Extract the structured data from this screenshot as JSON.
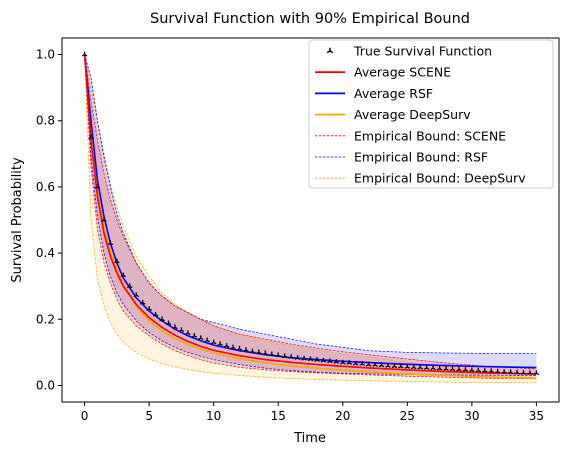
{
  "chart_data": {
    "type": "line",
    "title": "Survival Function with 90% Empirical Bound",
    "xlabel": "Time",
    "ylabel": "Survival Probability",
    "xlim": [
      -1.75,
      36.75
    ],
    "ylim": [
      -0.05,
      1.05
    ],
    "xticks": [
      0,
      5,
      10,
      15,
      20,
      25,
      30,
      35
    ],
    "yticks": [
      0.0,
      0.2,
      0.4,
      0.6,
      0.8,
      1.0
    ],
    "xtick_labels": [
      "0",
      "5",
      "10",
      "15",
      "20",
      "25",
      "30",
      "35"
    ],
    "ytick_labels": [
      "0.0",
      "0.2",
      "0.4",
      "0.6",
      "0.8",
      "1.0"
    ],
    "grid": false,
    "legend_position": "top-right",
    "colors": {
      "scene": "#ff0000",
      "rsf": "#0000ff",
      "deepsurv": "#ffa500",
      "true": "#000000"
    },
    "true_survival": {
      "name": "True Survival Function",
      "x": [
        0,
        0.5,
        1,
        1.5,
        2,
        2.5,
        3,
        3.5,
        4,
        4.5,
        5,
        5.5,
        6,
        6.5,
        7,
        7.5,
        8,
        8.5,
        9,
        9.5,
        10,
        10.5,
        11,
        11.5,
        12,
        12.5,
        13,
        13.5,
        14,
        14.5,
        15,
        15.5,
        16,
        16.5,
        17,
        17.5,
        18,
        18.5,
        19,
        19.5,
        20,
        20.5,
        21,
        21.5,
        22,
        22.5,
        23,
        23.5,
        24,
        24.5,
        25,
        25.5,
        26,
        26.5,
        27,
        27.5,
        28,
        28.5,
        29,
        29.5,
        30,
        30.5,
        31,
        31.5,
        32,
        32.5,
        33,
        33.5,
        34,
        34.5,
        35
      ],
      "y": [
        1.0,
        0.75,
        0.6,
        0.5,
        0.43,
        0.375,
        0.333,
        0.3,
        0.273,
        0.25,
        0.231,
        0.214,
        0.2,
        0.188,
        0.176,
        0.167,
        0.158,
        0.15,
        0.143,
        0.136,
        0.13,
        0.125,
        0.12,
        0.115,
        0.111,
        0.107,
        0.103,
        0.1,
        0.097,
        0.094,
        0.091,
        0.088,
        0.086,
        0.083,
        0.081,
        0.079,
        0.077,
        0.075,
        0.073,
        0.071,
        0.069,
        0.068,
        0.066,
        0.065,
        0.063,
        0.062,
        0.061,
        0.059,
        0.058,
        0.057,
        0.056,
        0.055,
        0.054,
        0.053,
        0.052,
        0.051,
        0.05,
        0.049,
        0.048,
        0.047,
        0.046,
        0.045,
        0.044,
        0.043,
        0.042,
        0.041,
        0.04,
        0.039,
        0.038,
        0.038,
        0.037
      ]
    },
    "x": [
      0,
      0.5,
      1,
      1.5,
      2,
      2.5,
      3,
      4,
      5,
      6,
      7,
      8,
      9,
      10,
      12,
      14,
      16,
      18,
      20,
      22,
      25,
      28,
      31,
      35
    ],
    "series": [
      {
        "name": "Average SCENE",
        "key": "scene",
        "y": [
          1.0,
          0.74,
          0.57,
          0.46,
          0.39,
          0.34,
          0.3,
          0.245,
          0.205,
          0.175,
          0.152,
          0.133,
          0.118,
          0.106,
          0.09,
          0.078,
          0.07,
          0.063,
          0.058,
          0.053,
          0.047,
          0.042,
          0.038,
          0.035
        ],
        "lower": [
          1.0,
          0.66,
          0.47,
          0.37,
          0.31,
          0.26,
          0.225,
          0.18,
          0.15,
          0.125,
          0.105,
          0.09,
          0.078,
          0.068,
          0.055,
          0.047,
          0.042,
          0.038,
          0.035,
          0.032,
          0.028,
          0.025,
          0.022,
          0.02
        ],
        "upper": [
          1.0,
          0.86,
          0.74,
          0.64,
          0.56,
          0.5,
          0.45,
          0.37,
          0.31,
          0.27,
          0.24,
          0.22,
          0.2,
          0.18,
          0.155,
          0.14,
          0.125,
          0.113,
          0.102,
          0.093,
          0.08,
          0.068,
          0.058,
          0.05
        ]
      },
      {
        "name": "Average RSF",
        "key": "rsf",
        "y": [
          1.0,
          0.8,
          0.62,
          0.51,
          0.43,
          0.37,
          0.325,
          0.265,
          0.225,
          0.195,
          0.17,
          0.15,
          0.135,
          0.122,
          0.105,
          0.093,
          0.084,
          0.078,
          0.073,
          0.069,
          0.064,
          0.06,
          0.057,
          0.054
        ],
        "lower": [
          1.0,
          0.69,
          0.51,
          0.4,
          0.33,
          0.28,
          0.245,
          0.195,
          0.16,
          0.135,
          0.115,
          0.1,
          0.088,
          0.078,
          0.063,
          0.052,
          0.045,
          0.04,
          0.037,
          0.035,
          0.033,
          0.032,
          0.031,
          0.03
        ],
        "upper": [
          1.0,
          0.93,
          0.8,
          0.69,
          0.6,
          0.52,
          0.46,
          0.37,
          0.31,
          0.27,
          0.24,
          0.22,
          0.2,
          0.19,
          0.17,
          0.155,
          0.14,
          0.125,
          0.115,
          0.105,
          0.1,
          0.098,
          0.097,
          0.096
        ]
      },
      {
        "name": "Average DeepSurv",
        "key": "deepsurv",
        "y": [
          1.0,
          0.75,
          0.59,
          0.48,
          0.405,
          0.35,
          0.305,
          0.24,
          0.195,
          0.165,
          0.142,
          0.124,
          0.11,
          0.098,
          0.081,
          0.068,
          0.059,
          0.052,
          0.046,
          0.041,
          0.035,
          0.03,
          0.026,
          0.022
        ],
        "lower": [
          1.0,
          0.5,
          0.32,
          0.24,
          0.19,
          0.155,
          0.13,
          0.1,
          0.08,
          0.066,
          0.056,
          0.048,
          0.042,
          0.037,
          0.03,
          0.025,
          0.021,
          0.018,
          0.016,
          0.014,
          0.012,
          0.01,
          0.009,
          0.008
        ],
        "upper": [
          1.0,
          0.9,
          0.8,
          0.7,
          0.61,
          0.54,
          0.48,
          0.39,
          0.33,
          0.28,
          0.245,
          0.22,
          0.2,
          0.18,
          0.155,
          0.135,
          0.12,
          0.107,
          0.095,
          0.085,
          0.07,
          0.055,
          0.045,
          0.035
        ]
      }
    ],
    "legend": [
      {
        "label": "True Survival Function",
        "kind": "marker",
        "color": "#000000"
      },
      {
        "label": "Average SCENE",
        "kind": "solid",
        "color": "#ff0000"
      },
      {
        "label": "Average RSF",
        "kind": "solid",
        "color": "#0000ff"
      },
      {
        "label": "Average DeepSurv",
        "kind": "solid",
        "color": "#ffa500"
      },
      {
        "label": "Empirical Bound: SCENE",
        "kind": "dashed",
        "color": "#ff0000"
      },
      {
        "label": "Empirical Bound: RSF",
        "kind": "dashed",
        "color": "#0000ff"
      },
      {
        "label": "Empirical Bound: DeepSurv",
        "kind": "dashed",
        "color": "#ffa500"
      }
    ]
  }
}
